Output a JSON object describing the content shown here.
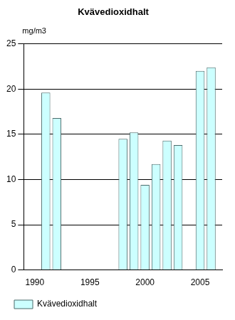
{
  "chart_data": {
    "type": "bar",
    "title": "Kvävedioxidhalt",
    "ylabel": "mg/m3",
    "x": [
      1991,
      1992,
      1998,
      1999,
      2000,
      2001,
      2002,
      2003,
      2005,
      2006
    ],
    "series": [
      {
        "name": "Kvävedioxidhalt",
        "color": "#ccffff",
        "values": [
          19.6,
          16.8,
          14.5,
          15.2,
          9.4,
          11.7,
          14.3,
          13.8,
          22.0,
          22.4
        ]
      }
    ],
    "xlim": [
      1989,
      2007
    ],
    "xticks": [
      1990,
      1995,
      2000,
      2005
    ],
    "ylim": [
      0,
      25
    ],
    "yticks": [
      0,
      5,
      10,
      15,
      20,
      25
    ],
    "grid": true,
    "legend": "bottom-left"
  }
}
